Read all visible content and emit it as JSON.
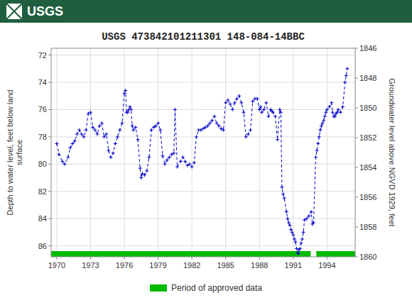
{
  "chart_data": {
    "type": "line",
    "title": "USGS 473842101211301 148-084-14BBC",
    "annotations": [
      {
        "text": "USGS"
      }
    ],
    "ylabel": "Depth to water level, feet below land\nsurface",
    "y2label": "Groundwater level above NGVD 1929, feet",
    "xlim": [
      1969.5,
      1996.5
    ],
    "xticks": [
      1970,
      1973,
      1976,
      1979,
      1982,
      1985,
      1988,
      1991,
      1994
    ],
    "ylim": [
      86.8,
      71.5
    ],
    "yticks": [
      72,
      74,
      76,
      78,
      80,
      82,
      84,
      86
    ],
    "y2lim": [
      1860,
      1846
    ],
    "y2ticks": [
      1846,
      1848,
      1850,
      1852,
      1854,
      1856,
      1858,
      1860
    ],
    "grid": true,
    "legend": "bottom",
    "x": [
      1970.0,
      1970.2,
      1970.5,
      1970.7,
      1971.0,
      1971.2,
      1971.4,
      1971.6,
      1971.8,
      1972.0,
      1972.2,
      1972.4,
      1972.6,
      1972.8,
      1973.0,
      1973.2,
      1973.4,
      1973.6,
      1973.8,
      1974.0,
      1974.2,
      1974.4,
      1974.6,
      1974.8,
      1975.0,
      1975.2,
      1975.4,
      1975.6,
      1975.8,
      1976.0,
      1976.1,
      1976.2,
      1976.3,
      1976.4,
      1976.5,
      1976.6,
      1976.7,
      1976.8,
      1977.0,
      1977.2,
      1977.4,
      1977.5,
      1977.6,
      1977.8,
      1978.0,
      1978.2,
      1978.4,
      1978.6,
      1978.8,
      1979.0,
      1979.2,
      1979.4,
      1979.6,
      1979.8,
      1980.0,
      1980.2,
      1980.4,
      1980.5,
      1980.7,
      1981.0,
      1981.2,
      1981.4,
      1981.6,
      1981.8,
      1982.0,
      1982.2,
      1982.4,
      1982.6,
      1982.8,
      1983.0,
      1983.2,
      1983.4,
      1983.6,
      1983.8,
      1984.0,
      1984.2,
      1984.4,
      1984.6,
      1984.8,
      1985.0,
      1985.2,
      1985.4,
      1985.6,
      1985.8,
      1986.0,
      1986.2,
      1986.4,
      1986.6,
      1986.8,
      1987.0,
      1987.2,
      1987.4,
      1987.6,
      1987.8,
      1988.0,
      1988.1,
      1988.2,
      1988.4,
      1988.6,
      1988.8,
      1989.0,
      1989.1,
      1989.2,
      1989.4,
      1989.6,
      1989.8,
      1989.9,
      1990.0,
      1990.1,
      1990.2,
      1990.4,
      1990.5,
      1990.6,
      1990.7,
      1990.8,
      1990.9,
      1991.0,
      1991.1,
      1991.2,
      1991.3,
      1991.4,
      1991.45,
      1991.5,
      1991.6,
      1991.7,
      1991.8,
      1991.9,
      1992.0,
      1992.2,
      1992.4,
      1992.6,
      1992.7,
      1992.8,
      1993.0,
      1993.1,
      1993.2,
      1993.3,
      1993.4,
      1993.5,
      1993.6,
      1993.7,
      1993.8,
      1993.9,
      1994.0,
      1994.2,
      1994.4,
      1994.5,
      1994.6,
      1994.7,
      1994.8,
      1994.9,
      1995.0,
      1995.2,
      1995.4,
      1995.6,
      1995.7,
      1995.8
    ],
    "series": [
      {
        "color": "#0000cc",
        "marker": "plus",
        "line_style": "dashed",
        "values": [
          78.5,
          79.3,
          79.8,
          80.0,
          79.5,
          78.8,
          78.5,
          78.3,
          77.8,
          77.5,
          77.8,
          78.0,
          77.5,
          76.3,
          76.2,
          77.3,
          77.5,
          77.8,
          77.2,
          77.0,
          78.0,
          77.8,
          79.0,
          79.5,
          79.2,
          78.5,
          78.0,
          77.5,
          77.0,
          74.8,
          74.6,
          76.2,
          76.2,
          76.0,
          75.8,
          76.0,
          77.2,
          77.5,
          77.3,
          78.2,
          80.3,
          81.0,
          80.7,
          80.8,
          80.5,
          79.5,
          77.5,
          77.3,
          77.2,
          77.0,
          77.5,
          79.4,
          80.0,
          79.7,
          79.5,
          79.3,
          79.2,
          76.0,
          80.2,
          79.8,
          79.5,
          79.8,
          80.1,
          80.0,
          80.2,
          79.9,
          78.0,
          77.5,
          77.5,
          77.4,
          77.3,
          77.2,
          77.0,
          76.8,
          76.5,
          77.0,
          77.2,
          77.4,
          77.5,
          75.5,
          75.3,
          75.6,
          76.0,
          75.5,
          75.2,
          75.0,
          75.5,
          76.2,
          78.0,
          77.8,
          77.5,
          75.4,
          75.2,
          75.2,
          76.0,
          75.8,
          76.2,
          76.0,
          75.5,
          76.5,
          76.0,
          76.1,
          76.2,
          76.5,
          78.2,
          76.0,
          76.2,
          81.7,
          82.2,
          82.5,
          83.5,
          84.0,
          84.3,
          84.5,
          84.8,
          85.0,
          85.2,
          85.5,
          85.7,
          86.2,
          86.5,
          86.55,
          86.3,
          86.2,
          85.8,
          85.5,
          85.0,
          84.1,
          84.0,
          83.8,
          83.5,
          84.4,
          84.3,
          79.5,
          79.0,
          78.5,
          78.0,
          77.5,
          77.2,
          77.0,
          76.8,
          76.5,
          76.2,
          76.0,
          75.8,
          75.5,
          76.2,
          76.5,
          76.5,
          76.3,
          76.2,
          76.0,
          76.2,
          75.8,
          74.0,
          73.5,
          73.0
        ]
      }
    ],
    "approved_periods": {
      "name": "Period of approved data",
      "color": "#00bb00",
      "ranges": [
        {
          "start": 1969.5,
          "end": 1992.55
        },
        {
          "start": 1993.05,
          "end": 1996.5
        }
      ]
    }
  }
}
